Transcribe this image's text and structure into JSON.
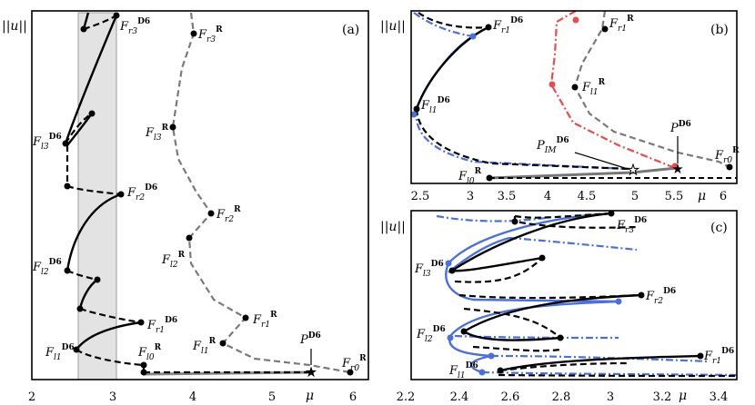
{
  "chart_data": [
    {
      "panel": "(a)",
      "type": "line",
      "ylabel": "||u||",
      "xlabel": "μ",
      "xlim": [
        2,
        6.2
      ],
      "xticks": [
        "2",
        "3",
        "4",
        "5",
        "6"
      ],
      "shaded_band": [
        2.55,
        3.05
      ],
      "branches": [
        {
          "name": "D6 stable",
          "style": "solid-black",
          "points": [
            [
              2.6,
              0.97
            ],
            [
              3.05,
              0.98
            ],
            [
              2.95,
              0.9
            ],
            [
              2.55,
              0.73
            ],
            [
              2.45,
              0.68
            ],
            [
              2.75,
              0.74
            ],
            [
              2.5,
              0.58
            ],
            [
              2.65,
              0.45
            ],
            [
              3.05,
              0.49
            ],
            [
              2.55,
              0.35
            ],
            [
              2.5,
              0.3
            ],
            [
              2.85,
              0.22
            ],
            [
              2.65,
              0.16
            ],
            [
              2.55,
              0.1
            ],
            [
              3.35,
              0.04
            ],
            [
              5.5,
              0.02
            ]
          ]
        },
        {
          "name": "D6 unstable",
          "style": "dashed-black",
          "points": [
            [
              2.6,
              0.92
            ],
            [
              2.6,
              0.9
            ],
            [
              2.45,
              0.72
            ],
            [
              2.75,
              0.75
            ],
            [
              2.5,
              0.52
            ],
            [
              3.0,
              0.48
            ],
            [
              2.55,
              0.3
            ],
            [
              2.85,
              0.27
            ],
            [
              2.55,
              0.16
            ],
            [
              2.55,
              0.11
            ],
            [
              3.2,
              0.14
            ],
            [
              3.35,
              0.02
            ],
            [
              5.5,
              0.03
            ]
          ]
        },
        {
          "name": "R",
          "style": "dashed-grey",
          "points": [
            [
              4.0,
              0.97
            ],
            [
              4.05,
              0.88
            ],
            [
              3.85,
              0.73
            ],
            [
              3.8,
              0.65
            ],
            [
              4.2,
              0.5
            ],
            [
              3.95,
              0.35
            ],
            [
              4.35,
              0.25
            ],
            [
              4.7,
              0.18
            ],
            [
              4.4,
              0.12
            ],
            [
              4.35,
              0.08
            ],
            [
              5.0,
              0.05
            ],
            [
              6.05,
              0.02
            ]
          ]
        },
        {
          "name": "D6 grey",
          "style": "solid-grey",
          "points": [
            [
              3.35,
              0.03
            ],
            [
              5.5,
              0.02
            ]
          ]
        }
      ],
      "labels": [
        "F_{r3}^{D6}",
        "F_{r3}^{R}",
        "F_{l3}^{D6}",
        "F_{l3}^{R}",
        "F_{r2}^{D6}",
        "F_{r2}^{R}",
        "F_{l2}^{D6}",
        "F_{l2}^{R}",
        "F_{r1}^{D6}",
        "F_{r1}^{R}",
        "F_{l1}^{D6}",
        "F_{l1}^{R}",
        "F_{l0}^{R}",
        "P^{D6}",
        "F_{r0}^{R}"
      ]
    },
    {
      "panel": "(b)",
      "type": "line",
      "ylabel": "||u||",
      "xlabel": "μ",
      "xlim": [
        2.4,
        6.2
      ],
      "xticks": [
        "2.5",
        "3",
        "3.5",
        "4",
        "4.5",
        "5",
        "5.5",
        "6"
      ],
      "branches": [
        {
          "name": "black",
          "style": "solid-black",
          "points": [
            [
              3.1,
              0.88
            ],
            [
              2.85,
              0.78
            ],
            [
              2.65,
              0.58
            ],
            [
              2.55,
              0.45
            ],
            [
              2.6,
              0.32
            ]
          ]
        },
        {
          "name": "black unstable",
          "style": "dashed-black",
          "points": [
            [
              2.55,
              0.98
            ],
            [
              2.9,
              0.9
            ],
            [
              3.3,
              0.86
            ],
            [
              3.1,
              0.88
            ],
            [
              2.6,
              0.32
            ],
            [
              2.8,
              0.15
            ],
            [
              3.3,
              0.08
            ],
            [
              4.9,
              0.08
            ]
          ]
        },
        {
          "name": "blue",
          "style": "dashdot-blue",
          "points": [
            [
              2.55,
              0.98
            ],
            [
              2.95,
              0.86
            ],
            [
              3.2,
              0.84
            ],
            [
              2.7,
              0.72
            ],
            [
              2.5,
              0.42
            ],
            [
              2.75,
              0.22
            ],
            [
              3.3,
              0.12
            ],
            [
              4.3,
              0.1
            ]
          ]
        },
        {
          "name": "red",
          "style": "dashdot-red",
          "points": [
            [
              4.25,
              0.95
            ],
            [
              4.15,
              0.62
            ],
            [
              4.6,
              0.4
            ],
            [
              5.1,
              0.2
            ],
            [
              5.5,
              0.12
            ]
          ]
        },
        {
          "name": "grey",
          "style": "dashed-grey",
          "points": [
            [
              4.65,
              0.95
            ],
            [
              4.45,
              0.62
            ],
            [
              4.8,
              0.4
            ],
            [
              5.5,
              0.2
            ],
            [
              6.0,
              0.1
            ]
          ]
        },
        {
          "name": "grey base",
          "style": "solid-grey",
          "points": [
            [
              3.4,
              0.03
            ],
            [
              5.5,
              0.08
            ]
          ]
        }
      ],
      "labels": [
        "F_{r1}^{D6}",
        "F_{r1}^{R}",
        "F_{l1}^{R}",
        "F_{l1}^{D6}",
        "P_{IM}^{D6}",
        "P^{D6}",
        "F_{r0}^{R}",
        "F_{l0}^{R}"
      ]
    },
    {
      "panel": "(c)",
      "type": "line",
      "ylabel": "||u||",
      "xlabel": "μ",
      "xlim": [
        2.2,
        3.55
      ],
      "xticks": [
        "2.2",
        "2.4",
        "2.6",
        "2.8",
        "3",
        "3.2",
        "3.4"
      ],
      "branches": [
        {
          "name": "black",
          "style": "solid-black",
          "points": [
            [
              2.95,
              0.95
            ],
            [
              2.55,
              0.9
            ],
            [
              2.4,
              0.7
            ],
            [
              2.55,
              0.65
            ],
            [
              3.05,
              0.55
            ],
            [
              2.45,
              0.5
            ],
            [
              2.4,
              0.3
            ],
            [
              2.6,
              0.28
            ],
            [
              3.45,
              0.15
            ],
            [
              2.55,
              0.05
            ]
          ]
        },
        {
          "name": "black dashed",
          "style": "dashed-black",
          "points": [
            [
              2.9,
              0.95
            ],
            [
              2.6,
              0.85
            ],
            [
              2.7,
              0.78
            ],
            [
              2.4,
              0.6
            ],
            [
              2.45,
              0.55
            ],
            [
              3.1,
              0.52
            ],
            [
              2.5,
              0.38
            ],
            [
              2.45,
              0.35
            ],
            [
              2.8,
              0.32
            ],
            [
              2.55,
              0.15
            ],
            [
              3.45,
              0.1
            ]
          ]
        },
        {
          "name": "blue",
          "style": "solid-blue",
          "points": [
            [
              2.95,
              0.98
            ],
            [
              2.5,
              0.95
            ],
            [
              2.35,
              0.68
            ],
            [
              2.6,
              0.62
            ],
            [
              3.0,
              0.55
            ],
            [
              2.4,
              0.5
            ],
            [
              2.35,
              0.28
            ],
            [
              2.6,
              0.25
            ],
            [
              2.55,
              0.05
            ]
          ]
        },
        {
          "name": "blue dashdot",
          "style": "dashdot-blue",
          "points": [
            [
              2.4,
              0.98
            ],
            [
              2.7,
              0.95
            ],
            [
              2.4,
              0.6
            ],
            [
              2.95,
              0.52
            ],
            [
              2.45,
              0.3
            ],
            [
              2.8,
              0.28
            ],
            [
              2.55,
              0.1
            ]
          ]
        }
      ],
      "labels": [
        "F_{r3}^{D6}",
        "F_{l3}^{D6}",
        "F_{r2}^{D6}",
        "F_{l2}^{D6}",
        "F_{r1}^{D6}",
        "F_{l1}^{D6}"
      ]
    }
  ]
}
